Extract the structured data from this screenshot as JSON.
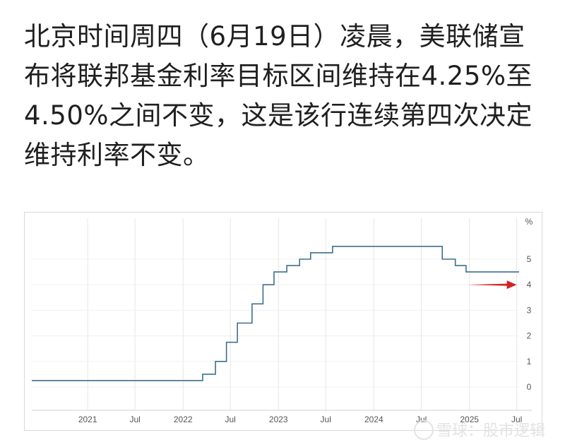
{
  "article": {
    "lines": [
      "北京时间周四（6月19日）凌晨，美联储宣",
      "布将联邦基金利率目标区间维持在4.25%至",
      "4.50%之间不变，这是该行连续第四次决定",
      "维持利率不变。"
    ]
  },
  "chart_data": {
    "type": "line",
    "title": "",
    "xlabel": "",
    "ylabel": "%",
    "ylim": [
      -1,
      6
    ],
    "y_ticks": [
      "0",
      "1",
      "2",
      "3",
      "4",
      "5"
    ],
    "x_ticks": [
      {
        "label": "2021",
        "date": "2021-01-01"
      },
      {
        "label": "Jul",
        "date": "2021-07-01"
      },
      {
        "label": "2022",
        "date": "2022-01-01"
      },
      {
        "label": "Jul",
        "date": "2022-07-01"
      },
      {
        "label": "2023",
        "date": "2023-01-01"
      },
      {
        "label": "Jul",
        "date": "2023-07-01"
      },
      {
        "label": "2024",
        "date": "2024-01-01"
      },
      {
        "label": "Jul",
        "date": "2024-07-01"
      },
      {
        "label": "2025",
        "date": "2025-01-01"
      },
      {
        "label": "Jul",
        "date": "2025-07-01"
      }
    ],
    "series": [
      {
        "points": [
          [
            "2020-06-01",
            0.25
          ],
          [
            "2022-03-17",
            0.5
          ],
          [
            "2022-05-05",
            1.0
          ],
          [
            "2022-06-16",
            1.75
          ],
          [
            "2022-07-28",
            2.5
          ],
          [
            "2022-09-22",
            3.25
          ],
          [
            "2022-11-03",
            4.0
          ],
          [
            "2022-12-15",
            4.5
          ],
          [
            "2023-02-02",
            4.75
          ],
          [
            "2023-03-23",
            5.0
          ],
          [
            "2023-05-04",
            5.25
          ],
          [
            "2023-07-27",
            5.5
          ],
          [
            "2024-09-19",
            5.0
          ],
          [
            "2024-11-08",
            4.75
          ],
          [
            "2024-12-19",
            4.5
          ],
          [
            "2025-07-10",
            4.5
          ]
        ]
      }
    ],
    "grid": true,
    "annotation": {
      "type": "arrow",
      "x_start": "2024-12-26",
      "x_end": "2025-07-01",
      "y": 4.0
    },
    "colors": {
      "line": "#3f6f8f",
      "arrow": "#d32222",
      "grid": "#e6e6e6"
    }
  },
  "watermark": "雪球：股市逻辑"
}
